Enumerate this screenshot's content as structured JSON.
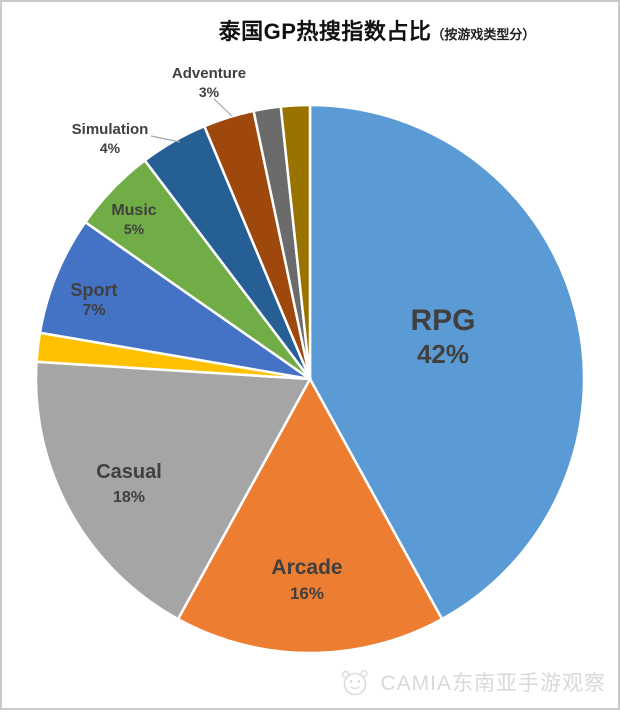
{
  "title": {
    "main": "泰国GP热搜指数占比",
    "paren": "（按游戏类型分）"
  },
  "watermark": {
    "brand": "CAMIA东南亚手游观察",
    "logo": "mascot-face-icon"
  },
  "colors": {
    "label_text": "#404040",
    "leader_line": "#a6a6a6",
    "slice_gap_stroke": "#ffffff",
    "frame_border": "#c9c9c9",
    "watermark_text": "#d9d9d9"
  },
  "chart_data": {
    "type": "pie",
    "title": "泰国GP热搜指数占比（按游戏类型分）",
    "start_angle_deg": 0,
    "direction": "clockwise",
    "legend": "none",
    "slices": [
      {
        "label": "RPG",
        "pct_label": "42%",
        "value": 42,
        "color": "#5B9BD5"
      },
      {
        "label": "Arcade",
        "pct_label": "16%",
        "value": 16,
        "color": "#ED7D31"
      },
      {
        "label": "Casual",
        "pct_label": "18%",
        "value": 18,
        "color": "#A5A5A5"
      },
      {
        "label": "",
        "pct_label": "",
        "value": 1.7,
        "color": "#FFC000"
      },
      {
        "label": "Sport",
        "pct_label": "7%",
        "value": 7,
        "color": "#4472C4"
      },
      {
        "label": "Music",
        "pct_label": "5%",
        "value": 5,
        "color": "#70AD47"
      },
      {
        "label": "Simulation",
        "pct_label": "4%",
        "value": 4,
        "color": "#265F94"
      },
      {
        "label": "Adventure",
        "pct_label": "3%",
        "value": 3,
        "color": "#9E480E"
      },
      {
        "label": "",
        "pct_label": "",
        "value": 1.6,
        "color": "#6B6B6B"
      },
      {
        "label": "",
        "pct_label": "",
        "value": 1.7,
        "color": "#997300"
      }
    ]
  }
}
